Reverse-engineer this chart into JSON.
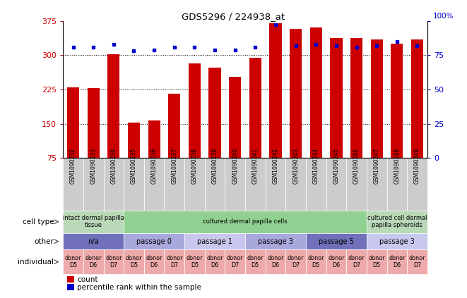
{
  "title": "GDS5296 / 224938_at",
  "samples": [
    "GSM1090232",
    "GSM1090233",
    "GSM1090234",
    "GSM1090235",
    "GSM1090236",
    "GSM1090237",
    "GSM1090238",
    "GSM1090239",
    "GSM1090240",
    "GSM1090241",
    "GSM1090242",
    "GSM1090243",
    "GSM1090244",
    "GSM1090245",
    "GSM1090246",
    "GSM1090247",
    "GSM1090248",
    "GSM1090249"
  ],
  "counts": [
    230,
    228,
    302,
    152,
    158,
    215,
    282,
    272,
    252,
    295,
    370,
    358,
    360,
    338,
    338,
    335,
    325,
    335
  ],
  "percentiles": [
    81,
    81,
    83,
    78,
    79,
    81,
    81,
    79,
    79,
    81,
    97,
    82,
    83,
    82,
    81,
    82,
    85,
    82
  ],
  "ylim_left": [
    75,
    375
  ],
  "ylim_right": [
    0,
    100
  ],
  "yticks_left": [
    75,
    150,
    225,
    300,
    375
  ],
  "yticks_right": [
    0,
    25,
    50,
    75,
    100
  ],
  "bar_color": "#cc0000",
  "dot_color": "#0000cc",
  "sample_box_color": "#cccccc",
  "cell_type_groups": [
    {
      "label": "intact dermal papilla\ntissue",
      "start": 0,
      "end": 3,
      "color": "#b8d8b8"
    },
    {
      "label": "cultured dermal papilla cells",
      "start": 3,
      "end": 15,
      "color": "#90d090"
    },
    {
      "label": "cultured cell dermal\npapilla spheroids",
      "start": 15,
      "end": 18,
      "color": "#b8d8b8"
    }
  ],
  "other_groups": [
    {
      "label": "n/a",
      "start": 0,
      "end": 3,
      "color": "#7070bb"
    },
    {
      "label": "passage 0",
      "start": 3,
      "end": 6,
      "color": "#a8a8dd"
    },
    {
      "label": "passage 1",
      "start": 6,
      "end": 9,
      "color": "#c8c8ee"
    },
    {
      "label": "passage 3",
      "start": 9,
      "end": 12,
      "color": "#a8a8dd"
    },
    {
      "label": "passage 5",
      "start": 12,
      "end": 15,
      "color": "#7070bb"
    },
    {
      "label": "passage 3",
      "start": 15,
      "end": 18,
      "color": "#c8c8ee"
    }
  ],
  "individual_groups": [
    {
      "label": "donor\nD5",
      "start": 0,
      "end": 1,
      "color": "#eeaaaa"
    },
    {
      "label": "donor\nD6",
      "start": 1,
      "end": 2,
      "color": "#eeaaaa"
    },
    {
      "label": "donor\nD7",
      "start": 2,
      "end": 3,
      "color": "#eeaaaa"
    },
    {
      "label": "donor\nD5",
      "start": 3,
      "end": 4,
      "color": "#eeaaaa"
    },
    {
      "label": "donor\nD6",
      "start": 4,
      "end": 5,
      "color": "#eeaaaa"
    },
    {
      "label": "donor\nD7",
      "start": 5,
      "end": 6,
      "color": "#eeaaaa"
    },
    {
      "label": "donor\nD5",
      "start": 6,
      "end": 7,
      "color": "#eeaaaa"
    },
    {
      "label": "donor\nD6",
      "start": 7,
      "end": 8,
      "color": "#eeaaaa"
    },
    {
      "label": "donor\nD7",
      "start": 8,
      "end": 9,
      "color": "#eeaaaa"
    },
    {
      "label": "donor\nD5",
      "start": 9,
      "end": 10,
      "color": "#eeaaaa"
    },
    {
      "label": "donor\nD6",
      "start": 10,
      "end": 11,
      "color": "#eeaaaa"
    },
    {
      "label": "donor\nD7",
      "start": 11,
      "end": 12,
      "color": "#eeaaaa"
    },
    {
      "label": "donor\nD5",
      "start": 12,
      "end": 13,
      "color": "#eeaaaa"
    },
    {
      "label": "donor\nD6",
      "start": 13,
      "end": 14,
      "color": "#eeaaaa"
    },
    {
      "label": "donor\nD7",
      "start": 14,
      "end": 15,
      "color": "#eeaaaa"
    },
    {
      "label": "donor\nD5",
      "start": 15,
      "end": 16,
      "color": "#eeaaaa"
    },
    {
      "label": "donor\nD6",
      "start": 16,
      "end": 17,
      "color": "#eeaaaa"
    },
    {
      "label": "donor\nD7",
      "start": 17,
      "end": 18,
      "color": "#eeaaaa"
    }
  ],
  "row_labels": [
    "cell type",
    "other",
    "individual"
  ],
  "legend_count_label": "count",
  "legend_pct_label": "percentile rank within the sample",
  "fig_width": 6.61,
  "fig_height": 4.23,
  "dpi": 100
}
